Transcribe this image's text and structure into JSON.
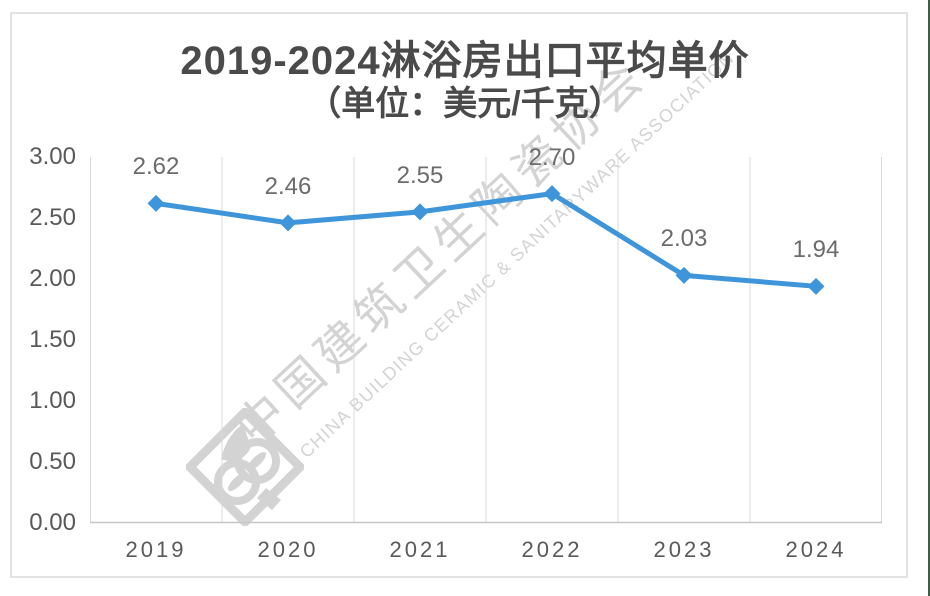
{
  "title": {
    "line1": "2019-2024淋浴房出口平均单价",
    "line2": "（单位：美元/千克）"
  },
  "chart_data": {
    "type": "line",
    "title": "2019-2024淋浴房出口平均单价",
    "subtitle": "（单位：美元/千克）",
    "categories": [
      "2019",
      "2020",
      "2021",
      "2022",
      "2023",
      "2024"
    ],
    "series": [
      {
        "name": "淋浴房出口平均单价",
        "values": [
          2.62,
          2.46,
          2.55,
          2.7,
          2.03,
          1.94
        ]
      }
    ],
    "data_labels": [
      "2.62",
      "2.46",
      "2.55",
      "2.70",
      "2.03",
      "1.94"
    ],
    "xlabel": "",
    "ylabel": "",
    "ylim": [
      0.0,
      3.0
    ],
    "ytick_step": 0.5,
    "yticks": [
      "3.00",
      "2.50",
      "2.00",
      "1.50",
      "1.00",
      "0.50",
      "0.00"
    ],
    "grid": "vertical-only",
    "legend": "none",
    "marker": "diamond"
  },
  "watermark": {
    "cn": "中国建筑卫生陶瓷协会",
    "en": "CHINA BUILDING CERAMIC & SANITARYWARE ASSOCIATION",
    "logo": "cbcsa-association-logo"
  },
  "colors": {
    "line": "#3E95D9",
    "marker": "#3E95D9",
    "gridline": "#D9D9D9",
    "axis_line": "#C6C6C6",
    "axis_text": "#595959",
    "data_label_text": "#6B6B6B",
    "title_text": "#4A4A4A",
    "watermark": "#D3D3D3",
    "frame_border": "#E2E2E2",
    "right_edge": "#3E5E49",
    "background": "#FFFFFF"
  }
}
